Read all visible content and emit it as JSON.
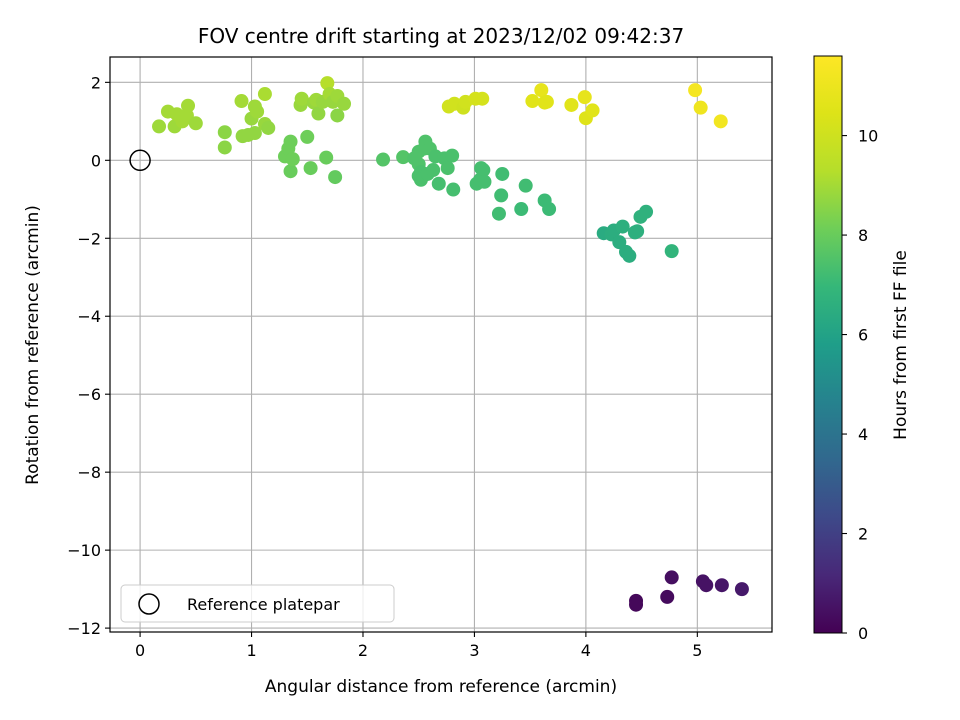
{
  "chart_data": {
    "type": "scatter",
    "title": "FOV centre drift starting at 2023/12/02 09:42:37",
    "xlabel": "Angular distance from reference (arcmin)",
    "ylabel": "Rotation from reference (arcmin)",
    "xlim": [
      -0.27,
      5.67
    ],
    "ylim": [
      -12.1,
      2.65
    ],
    "xticks": [
      0,
      1,
      2,
      3,
      4,
      5
    ],
    "yticks": [
      -12,
      -10,
      -8,
      -6,
      -4,
      -2,
      0,
      2
    ],
    "grid": true,
    "legend": {
      "location": "lower-left",
      "entries": [
        {
          "label": "Reference platepar",
          "marker": "open-circle"
        }
      ]
    },
    "reference_point": {
      "x": 0,
      "y": 0
    },
    "colorbar": {
      "label": "Hours from first FF file",
      "colormap": "viridis",
      "range": [
        0,
        11.6
      ],
      "ticks": [
        0,
        2,
        4,
        6,
        8,
        10
      ]
    },
    "points": [
      {
        "x": 4.45,
        "y": -11.3,
        "h": 0.2
      },
      {
        "x": 4.45,
        "y": -11.4,
        "h": 0.2
      },
      {
        "x": 4.73,
        "y": -11.2,
        "h": 0.3
      },
      {
        "x": 4.77,
        "y": -10.7,
        "h": 0.4
      },
      {
        "x": 5.05,
        "y": -10.8,
        "h": 0.5
      },
      {
        "x": 5.08,
        "y": -10.9,
        "h": 0.5
      },
      {
        "x": 5.22,
        "y": -10.9,
        "h": 0.6
      },
      {
        "x": 5.4,
        "y": -11.0,
        "h": 0.7
      },
      {
        "x": 4.16,
        "y": -1.87,
        "h": 6.4
      },
      {
        "x": 4.23,
        "y": -1.9,
        "h": 6.5
      },
      {
        "x": 4.25,
        "y": -1.8,
        "h": 6.5
      },
      {
        "x": 4.3,
        "y": -2.1,
        "h": 6.5
      },
      {
        "x": 4.33,
        "y": -1.7,
        "h": 6.6
      },
      {
        "x": 4.36,
        "y": -2.35,
        "h": 6.5
      },
      {
        "x": 4.39,
        "y": -2.45,
        "h": 6.5
      },
      {
        "x": 4.44,
        "y": -1.85,
        "h": 6.6
      },
      {
        "x": 4.46,
        "y": -1.82,
        "h": 6.6
      },
      {
        "x": 4.49,
        "y": -1.45,
        "h": 6.7
      },
      {
        "x": 4.54,
        "y": -1.32,
        "h": 6.7
      },
      {
        "x": 4.77,
        "y": -2.33,
        "h": 6.8
      },
      {
        "x": 2.18,
        "y": 0.02,
        "h": 7.6
      },
      {
        "x": 2.36,
        "y": 0.08,
        "h": 7.6
      },
      {
        "x": 2.46,
        "y": 0.05,
        "h": 7.5
      },
      {
        "x": 2.5,
        "y": 0.22,
        "h": 7.5
      },
      {
        "x": 2.5,
        "y": -0.1,
        "h": 7.5
      },
      {
        "x": 2.52,
        "y": -0.3,
        "h": 7.4
      },
      {
        "x": 2.5,
        "y": -0.4,
        "h": 7.4
      },
      {
        "x": 2.52,
        "y": -0.5,
        "h": 7.4
      },
      {
        "x": 2.55,
        "y": 0.3,
        "h": 7.5
      },
      {
        "x": 2.56,
        "y": 0.48,
        "h": 7.5
      },
      {
        "x": 2.58,
        "y": -0.35,
        "h": 7.4
      },
      {
        "x": 2.6,
        "y": 0.3,
        "h": 7.5
      },
      {
        "x": 2.63,
        "y": -0.25,
        "h": 7.4
      },
      {
        "x": 2.65,
        "y": 0.1,
        "h": 7.4
      },
      {
        "x": 2.68,
        "y": -0.6,
        "h": 7.3
      },
      {
        "x": 2.73,
        "y": 0.05,
        "h": 7.4
      },
      {
        "x": 2.76,
        "y": -0.2,
        "h": 7.4
      },
      {
        "x": 2.8,
        "y": 0.12,
        "h": 7.4
      },
      {
        "x": 2.81,
        "y": -0.75,
        "h": 7.3
      },
      {
        "x": 3.02,
        "y": -0.6,
        "h": 7.3
      },
      {
        "x": 3.05,
        "y": -0.5,
        "h": 7.3
      },
      {
        "x": 3.06,
        "y": -0.2,
        "h": 7.3
      },
      {
        "x": 3.08,
        "y": -0.25,
        "h": 7.3
      },
      {
        "x": 3.09,
        "y": -0.55,
        "h": 7.3
      },
      {
        "x": 3.22,
        "y": -1.37,
        "h": 7.2
      },
      {
        "x": 3.24,
        "y": -0.9,
        "h": 7.2
      },
      {
        "x": 3.25,
        "y": -0.35,
        "h": 7.2
      },
      {
        "x": 3.42,
        "y": -1.25,
        "h": 7.1
      },
      {
        "x": 3.46,
        "y": -0.65,
        "h": 7.2
      },
      {
        "x": 3.63,
        "y": -1.03,
        "h": 7.1
      },
      {
        "x": 3.67,
        "y": -1.25,
        "h": 7.1
      },
      {
        "x": 1.3,
        "y": 0.1,
        "h": 8.1
      },
      {
        "x": 1.33,
        "y": 0.3,
        "h": 8.1
      },
      {
        "x": 1.35,
        "y": 0.48,
        "h": 8.1
      },
      {
        "x": 1.35,
        "y": -0.28,
        "h": 8.0
      },
      {
        "x": 1.37,
        "y": 0.03,
        "h": 8.1
      },
      {
        "x": 1.5,
        "y": 0.6,
        "h": 8.1
      },
      {
        "x": 1.53,
        "y": -0.2,
        "h": 8.0
      },
      {
        "x": 1.67,
        "y": 0.07,
        "h": 8.0
      },
      {
        "x": 1.75,
        "y": -0.43,
        "h": 7.9
      },
      {
        "x": 0.17,
        "y": 0.87,
        "h": 8.9
      },
      {
        "x": 0.25,
        "y": 1.25,
        "h": 9.0
      },
      {
        "x": 0.31,
        "y": 0.87,
        "h": 8.9
      },
      {
        "x": 0.33,
        "y": 1.18,
        "h": 9.0
      },
      {
        "x": 0.38,
        "y": 1.0,
        "h": 9.0
      },
      {
        "x": 0.42,
        "y": 1.15,
        "h": 9.0
      },
      {
        "x": 0.43,
        "y": 1.4,
        "h": 9.0
      },
      {
        "x": 0.5,
        "y": 0.95,
        "h": 8.9
      },
      {
        "x": 0.76,
        "y": 0.33,
        "h": 8.6
      },
      {
        "x": 0.76,
        "y": 0.72,
        "h": 8.6
      },
      {
        "x": 0.91,
        "y": 1.52,
        "h": 9.0
      },
      {
        "x": 0.92,
        "y": 0.62,
        "h": 8.7
      },
      {
        "x": 0.97,
        "y": 0.65,
        "h": 8.7
      },
      {
        "x": 1.0,
        "y": 1.07,
        "h": 8.8
      },
      {
        "x": 1.03,
        "y": 1.38,
        "h": 8.9
      },
      {
        "x": 1.03,
        "y": 0.7,
        "h": 8.7
      },
      {
        "x": 1.05,
        "y": 1.25,
        "h": 8.9
      },
      {
        "x": 1.12,
        "y": 1.7,
        "h": 9.1
      },
      {
        "x": 1.12,
        "y": 0.93,
        "h": 8.8
      },
      {
        "x": 1.15,
        "y": 0.83,
        "h": 8.7
      },
      {
        "x": 1.44,
        "y": 1.42,
        "h": 8.8
      },
      {
        "x": 1.45,
        "y": 1.58,
        "h": 8.9
      },
      {
        "x": 1.56,
        "y": 1.48,
        "h": 8.8
      },
      {
        "x": 1.58,
        "y": 1.55,
        "h": 8.9
      },
      {
        "x": 1.6,
        "y": 1.2,
        "h": 8.7
      },
      {
        "x": 1.64,
        "y": 1.5,
        "h": 8.8
      },
      {
        "x": 1.68,
        "y": 1.98,
        "h": 9.3
      },
      {
        "x": 1.7,
        "y": 1.7,
        "h": 9.0
      },
      {
        "x": 1.73,
        "y": 1.5,
        "h": 8.8
      },
      {
        "x": 1.77,
        "y": 1.65,
        "h": 8.9
      },
      {
        "x": 1.77,
        "y": 1.15,
        "h": 8.6
      },
      {
        "x": 1.83,
        "y": 1.45,
        "h": 8.8
      },
      {
        "x": 2.77,
        "y": 1.38,
        "h": 10.1
      },
      {
        "x": 2.82,
        "y": 1.45,
        "h": 10.1
      },
      {
        "x": 2.9,
        "y": 1.35,
        "h": 10.0
      },
      {
        "x": 2.92,
        "y": 1.5,
        "h": 10.1
      },
      {
        "x": 3.01,
        "y": 1.58,
        "h": 10.2
      },
      {
        "x": 3.07,
        "y": 1.58,
        "h": 10.2
      },
      {
        "x": 3.52,
        "y": 1.52,
        "h": 10.6
      },
      {
        "x": 3.6,
        "y": 1.8,
        "h": 10.8
      },
      {
        "x": 3.63,
        "y": 1.48,
        "h": 10.6
      },
      {
        "x": 3.65,
        "y": 1.5,
        "h": 10.6
      },
      {
        "x": 3.87,
        "y": 1.42,
        "h": 10.6
      },
      {
        "x": 3.99,
        "y": 1.62,
        "h": 10.8
      },
      {
        "x": 4.0,
        "y": 1.08,
        "h": 10.5
      },
      {
        "x": 4.06,
        "y": 1.28,
        "h": 10.6
      },
      {
        "x": 4.98,
        "y": 1.8,
        "h": 11.3
      },
      {
        "x": 5.03,
        "y": 1.35,
        "h": 11.1
      },
      {
        "x": 5.21,
        "y": 1.0,
        "h": 11.2
      }
    ]
  }
}
